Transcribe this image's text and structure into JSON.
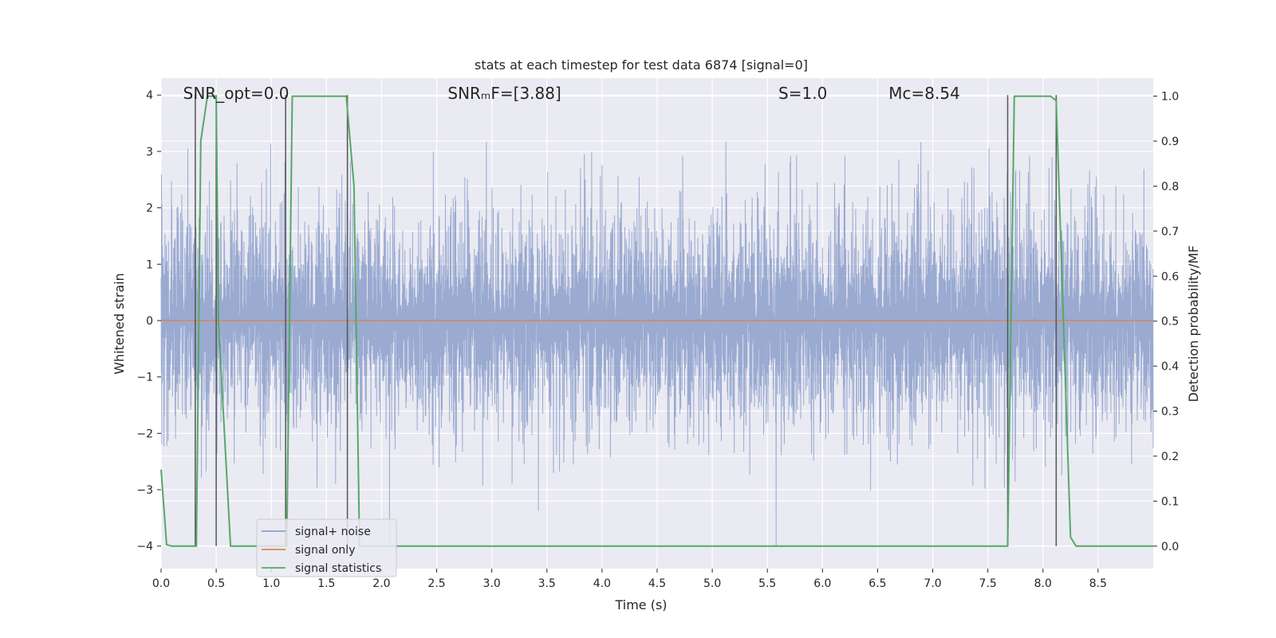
{
  "chart_data": {
    "type": "line",
    "title": "stats at each timestep for test data 6874 [signal=0]",
    "xlabel": "Time (s)",
    "ylabel": "Whitened strain",
    "y2label": "Detection probability/MF",
    "xlim": [
      0,
      9.0
    ],
    "ylim": [
      -4.4,
      4.3
    ],
    "y2lim": [
      -0.05,
      1.04
    ],
    "x_ticks": [
      0.0,
      0.5,
      1.0,
      1.5,
      2.0,
      2.5,
      3.0,
      3.5,
      4.0,
      4.5,
      5.0,
      5.5,
      6.0,
      6.5,
      7.0,
      7.5,
      8.0,
      8.5
    ],
    "x_tick_labels": [
      "0.0",
      "0.5",
      "1.0",
      "1.5",
      "2.0",
      "2.5",
      "3.0",
      "3.5",
      "4.0",
      "4.5",
      "5.0",
      "5.5",
      "6.0",
      "6.5",
      "7.0",
      "7.5",
      "8.0",
      "8.5"
    ],
    "y_ticks": [
      4,
      3,
      2,
      1,
      0,
      -1,
      -2,
      -3,
      -4
    ],
    "y_tick_labels": [
      "4",
      "3",
      "2",
      "1",
      "0",
      "−1",
      "−2",
      "−3",
      "−4"
    ],
    "y2_ticks": [
      1.0,
      0.9,
      0.8,
      0.7,
      0.6,
      0.5,
      0.4,
      0.3,
      0.2,
      0.1,
      0.0
    ],
    "y2_tick_labels": [
      "1.0",
      "0.9",
      "0.8",
      "0.7",
      "0.6",
      "0.5",
      "0.4",
      "0.3",
      "0.2",
      "0.1",
      "0.0"
    ],
    "grid": true,
    "legend_position": "lower-left",
    "annotations": [
      {
        "text": "SNR_opt=0.0",
        "x": 0.2
      },
      {
        "text": "SNRₘF=[3.88]",
        "x": 2.6
      },
      {
        "text": "S=1.0",
        "x": 5.6
      },
      {
        "text": "Mᴄ=8.54",
        "x": 6.6
      }
    ],
    "series": [
      {
        "name": "signal+ noise",
        "color": "#8c9fcb",
        "description": "noise strain, gaussian approx sigma 1.0",
        "amplitude_range": [
          -4.0,
          4.0
        ]
      },
      {
        "name": "signal only",
        "color": "#dd8452",
        "values_constant": 0.0
      },
      {
        "name": "signal statistics",
        "color": "#55a868",
        "axis": "right",
        "x": [
          0.0,
          0.05,
          0.1,
          0.3,
          0.32,
          0.36,
          0.42,
          0.5,
          0.52,
          0.63,
          1.1,
          1.14,
          1.19,
          1.68,
          1.75,
          1.8,
          7.62,
          7.68,
          7.74,
          8.07,
          8.12,
          8.25,
          8.3,
          9.0
        ],
        "values": [
          0.17,
          0.003,
          0.0,
          0.0,
          0.0,
          0.9,
          1.0,
          1.0,
          0.5,
          0.0,
          0.0,
          0.0,
          1.0,
          1.0,
          0.8,
          0.0,
          0.0,
          0.0,
          1.0,
          1.0,
          0.99,
          0.02,
          0.0,
          0.0
        ]
      }
    ],
    "vertical_markers_x": [
      0.31,
      0.5,
      1.13,
      1.69,
      7.68,
      8.12
    ]
  },
  "legend": {
    "items": [
      {
        "label": "signal+ noise",
        "color": "#8c9fcb"
      },
      {
        "label": "signal only",
        "color": "#dd8452"
      },
      {
        "label": "signal statistics",
        "color": "#55a868"
      }
    ]
  },
  "colors": {
    "plot_bg": "#eaeaf2",
    "grid": "#ffffff",
    "marker_line": "#555555"
  }
}
